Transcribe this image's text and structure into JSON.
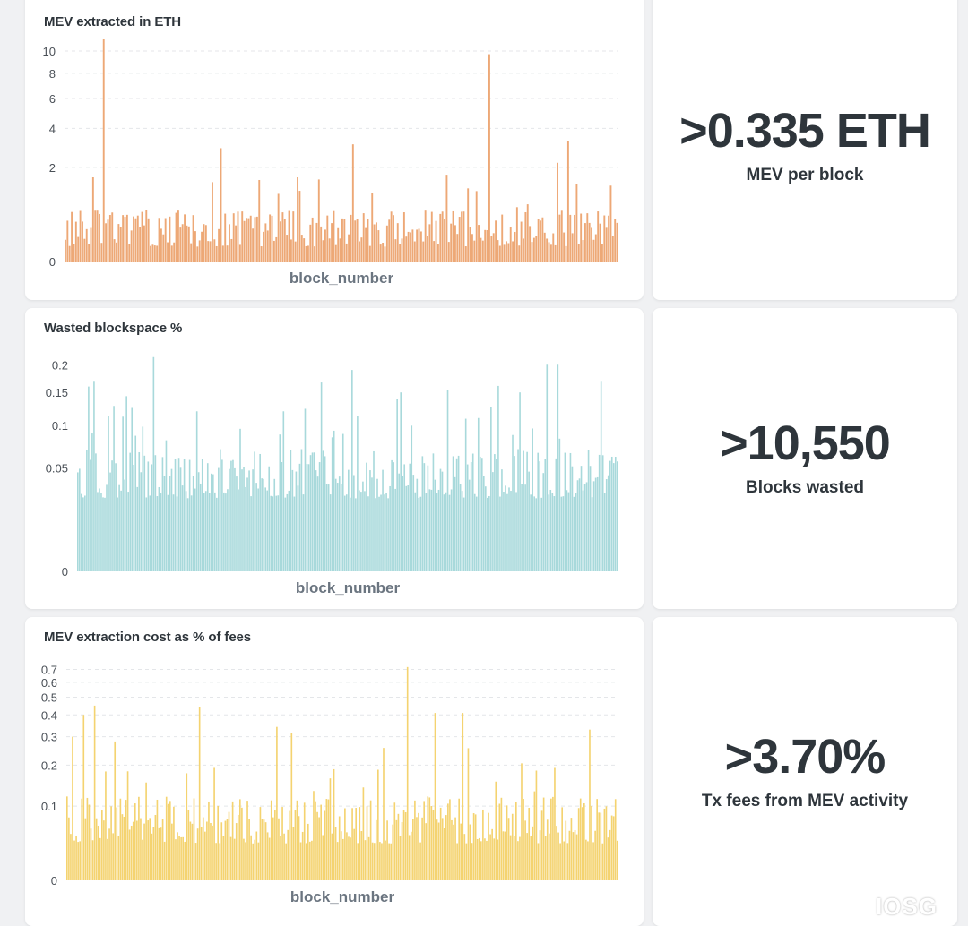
{
  "chart_data": [
    {
      "type": "bar",
      "title": "MEV extracted in ETH",
      "xlabel": "block_number",
      "ylabel": "",
      "scale": "sqrt",
      "ylim": [
        0,
        11.5
      ],
      "yticks": [
        0,
        2,
        4,
        6,
        8,
        10
      ],
      "grid": true,
      "color": "#eda876",
      "n_bars": 260,
      "typical_range": [
        0.05,
        0.6
      ],
      "peaks": [
        {
          "pos": 0.07,
          "value": 11.2
        },
        {
          "pos": 0.28,
          "value": 2.9
        },
        {
          "pos": 0.35,
          "value": 1.5
        },
        {
          "pos": 0.42,
          "value": 1.6
        },
        {
          "pos": 0.52,
          "value": 3.1
        },
        {
          "pos": 0.69,
          "value": 1.7
        },
        {
          "pos": 0.77,
          "value": 9.7
        },
        {
          "pos": 0.89,
          "value": 2.2
        },
        {
          "pos": 0.91,
          "value": 3.3
        },
        {
          "pos": 0.05,
          "value": 1.6
        },
        {
          "pos": 0.99,
          "value": 1.3
        }
      ]
    },
    {
      "type": "bar",
      "title": "Wasted blockspace %",
      "xlabel": "block_number",
      "ylabel": "",
      "scale": "sqrt",
      "ylim": [
        0,
        0.22
      ],
      "yticks": [
        0,
        0.05,
        0.1,
        0.15,
        0.2
      ],
      "grid": false,
      "color": "#a8d9db",
      "n_bars": 300,
      "typical_range": [
        0.025,
        0.07
      ],
      "peaks": [
        {
          "pos": 0.02,
          "value": 0.16
        },
        {
          "pos": 0.03,
          "value": 0.17
        },
        {
          "pos": 0.14,
          "value": 0.215
        },
        {
          "pos": 0.22,
          "value": 0.12
        },
        {
          "pos": 0.38,
          "value": 0.12
        },
        {
          "pos": 0.51,
          "value": 0.19
        },
        {
          "pos": 0.6,
          "value": 0.15
        },
        {
          "pos": 0.82,
          "value": 0.15
        },
        {
          "pos": 0.87,
          "value": 0.2
        },
        {
          "pos": 0.89,
          "value": 0.2
        },
        {
          "pos": 0.97,
          "value": 0.17
        }
      ]
    },
    {
      "type": "bar",
      "title": "MEV extraction cost as % of fees",
      "xlabel": "block_number",
      "ylabel": "",
      "scale": "log",
      "ylim": [
        0,
        0.75
      ],
      "yticks": [
        0,
        0.1,
        0.2,
        0.3,
        0.4,
        0.5,
        0.6,
        0.7
      ],
      "grid": true,
      "color": "#f4d370",
      "n_bars": 300,
      "typical_range": [
        0.04,
        0.12
      ],
      "peaks": [
        {
          "pos": 0.01,
          "value": 0.3
        },
        {
          "pos": 0.03,
          "value": 0.4
        },
        {
          "pos": 0.05,
          "value": 0.45
        },
        {
          "pos": 0.24,
          "value": 0.44
        },
        {
          "pos": 0.62,
          "value": 0.72
        },
        {
          "pos": 0.67,
          "value": 0.41
        },
        {
          "pos": 0.72,
          "value": 0.41
        },
        {
          "pos": 0.95,
          "value": 0.33
        }
      ]
    }
  ],
  "stats": [
    {
      "value": ">0.335 ETH",
      "label": "MEV per block"
    },
    {
      "value": ">10,550",
      "label": "Blocks wasted"
    },
    {
      "value": ">3.70%",
      "label": "Tx fees from MEV activity"
    }
  ],
  "watermark": "IOSG"
}
